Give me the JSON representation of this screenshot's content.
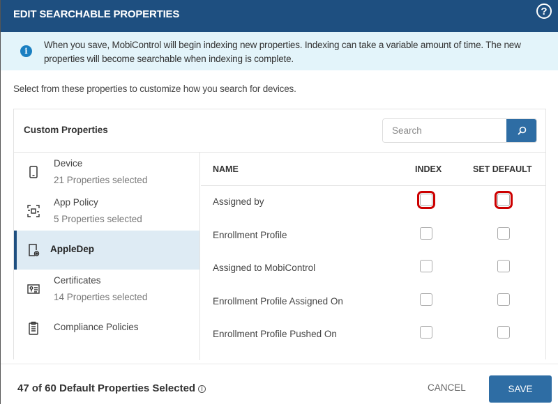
{
  "header": {
    "title": "EDIT SEARCHABLE PROPERTIES",
    "help_icon": "question-circle-icon"
  },
  "info": {
    "icon": "info-icon",
    "text": "When you save, MobiControl will begin indexing new properties. Indexing can take a variable amount of time. The new properties will become searchable when indexing is complete."
  },
  "intro": "Select from these properties to customize how you search for devices.",
  "panel": {
    "title": "Custom Properties",
    "search_placeholder": "Search",
    "search_icon": "search-icon"
  },
  "categories": [
    {
      "name": "Device",
      "sub": "21 Properties selected",
      "icon": "phone-icon"
    },
    {
      "name": "App Policy",
      "sub": "5 Properties selected",
      "icon": "app-policy-icon"
    },
    {
      "name": "AppleDep",
      "sub": "",
      "icon": "apple-dep-icon",
      "selected": true
    },
    {
      "name": "Certificates",
      "sub": "14 Properties selected",
      "icon": "certificate-icon"
    },
    {
      "name": "Compliance Policies",
      "sub": "",
      "icon": "clipboard-icon"
    }
  ],
  "table": {
    "columns": [
      "NAME",
      "INDEX",
      "SET DEFAULT"
    ],
    "rows": [
      {
        "name": "Assigned by",
        "index": false,
        "default": false
      },
      {
        "name": "Enrollment Profile",
        "index": false,
        "default": false
      },
      {
        "name": "Assigned to MobiControl",
        "index": false,
        "default": false
      },
      {
        "name": "Enrollment Profile Assigned On",
        "index": false,
        "default": false
      },
      {
        "name": "Enrollment Profile Pushed On",
        "index": false,
        "default": false
      }
    ]
  },
  "footer": {
    "count": "47 of 60 Default Properties Selected",
    "cancel": "CANCEL",
    "save": "SAVE"
  }
}
